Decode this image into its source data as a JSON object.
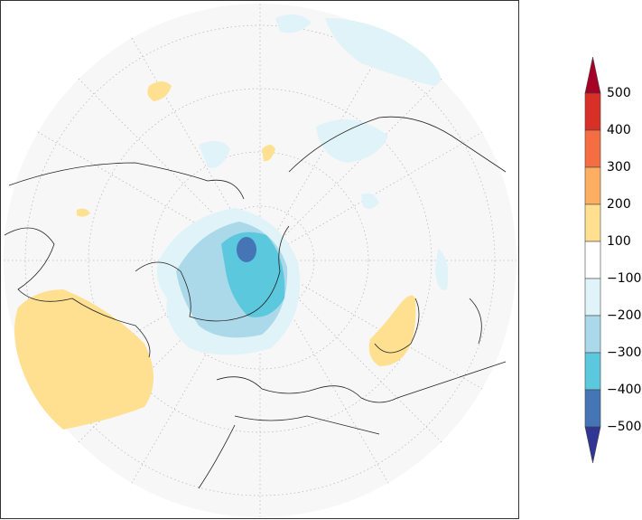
{
  "colorbar": {
    "labels": [
      "500",
      "400",
      "300",
      "200",
      "100",
      "−100",
      "−200",
      "−300",
      "−400",
      "−500"
    ],
    "top_color": "#a50026",
    "band_colors": [
      "#d73027",
      "#f46d43",
      "#fdae61",
      "#fee090",
      "#ffffff",
      "#e0f3f8",
      "#abd9e9",
      "#5bc8dd",
      "#4575b4"
    ],
    "bottom_color": "#313695"
  }
}
